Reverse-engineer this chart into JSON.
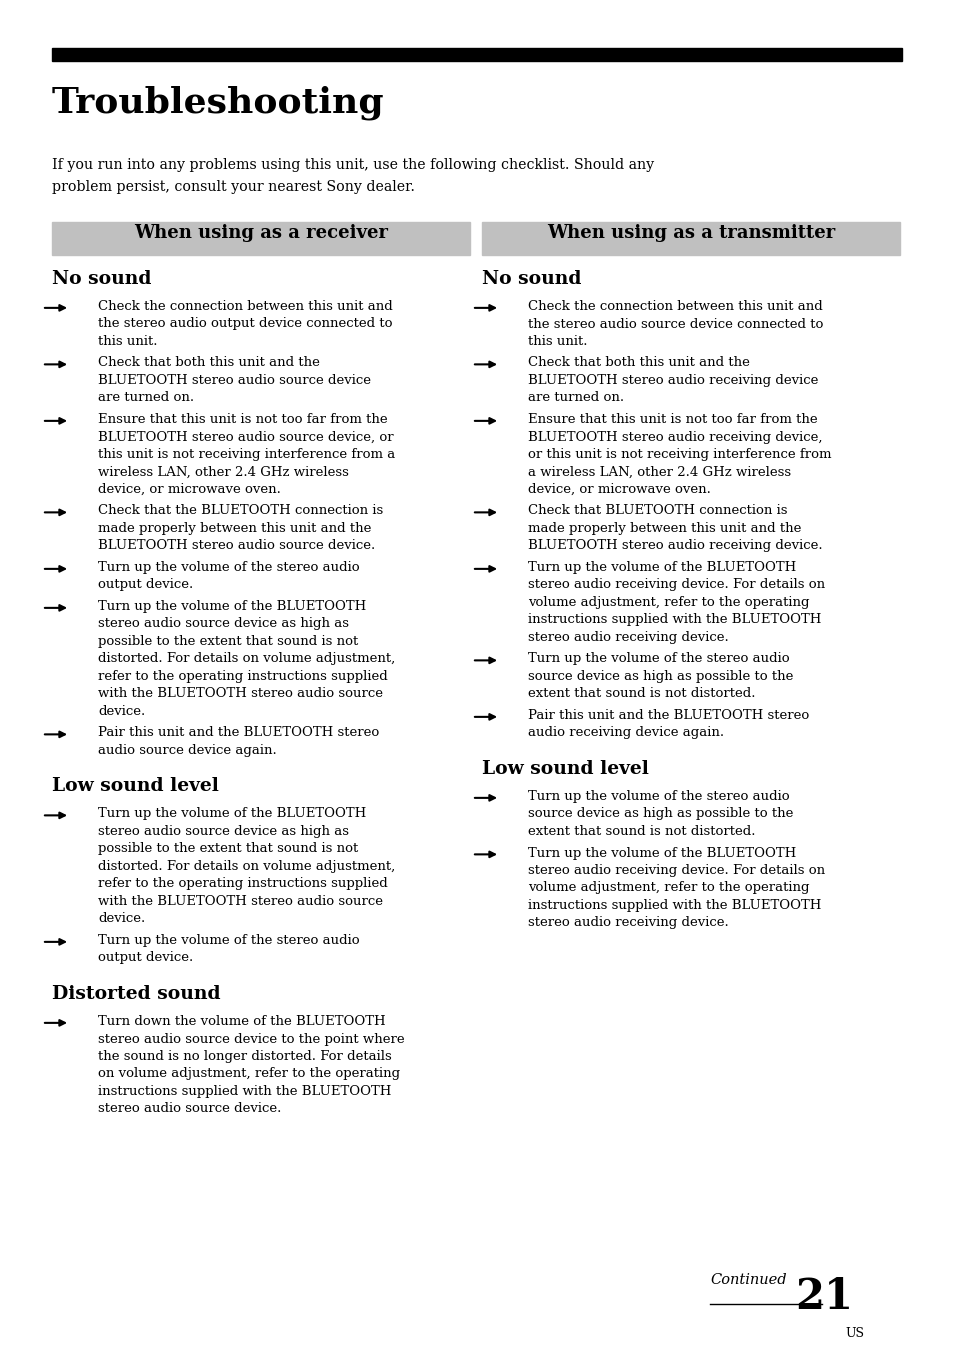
{
  "title": "Troubleshooting",
  "intro_lines": [
    "If you run into any problems using this unit, use the following checklist. Should any",
    "problem persist, consult your nearest Sony dealer."
  ],
  "col1_header": "When using as a receiver",
  "col2_header": "When using as a transmitter",
  "col1_sections": [
    {
      "heading": "No sound",
      "bullets": [
        "Check the connection between this unit and\nthe stereo audio output device connected to\nthis unit.",
        "Check that both this unit and the\nBLUETOOTH stereo audio source device\nare turned on.",
        "Ensure that this unit is not too far from the\nBLUETOOTH stereo audio source device, or\nthis unit is not receiving interference from a\nwireless LAN, other 2.4 GHz wireless\ndevice, or microwave oven.",
        "Check that the BLUETOOTH connection is\nmade properly between this unit and the\nBLUETOOTH stereo audio source device.",
        "Turn up the volume of the stereo audio\noutput device.",
        "Turn up the volume of the BLUETOOTH\nstereo audio source device as high as\npossible to the extent that sound is not\ndistorted. For details on volume adjustment,\nrefer to the operating instructions supplied\nwith the BLUETOOTH stereo audio source\ndevice.",
        "Pair this unit and the BLUETOOTH stereo\naudio source device again."
      ]
    },
    {
      "heading": "Low sound level",
      "bullets": [
        "Turn up the volume of the BLUETOOTH\nstereo audio source device as high as\npossible to the extent that sound is not\ndistorted. For details on volume adjustment,\nrefer to the operating instructions supplied\nwith the BLUETOOTH stereo audio source\ndevice.",
        "Turn up the volume of the stereo audio\noutput device."
      ]
    },
    {
      "heading": "Distorted sound",
      "bullets": [
        "Turn down the volume of the BLUETOOTH\nstereo audio source device to the point where\nthe sound is no longer distorted. For details\non volume adjustment, refer to the operating\ninstructions supplied with the BLUETOOTH\nstereo audio source device."
      ]
    }
  ],
  "col2_sections": [
    {
      "heading": "No sound",
      "bullets": [
        "Check the connection between this unit and\nthe stereo audio source device connected to\nthis unit.",
        "Check that both this unit and the\nBLUETOOTH stereo audio receiving device\nare turned on.",
        "Ensure that this unit is not too far from the\nBLUETOOTH stereo audio receiving device,\nor this unit is not receiving interference from\na wireless LAN, other 2.4 GHz wireless\ndevice, or microwave oven.",
        "Check that BLUETOOTH connection is\nmade properly between this unit and the\nBLUETOOTH stereo audio receiving device.",
        "Turn up the volume of the BLUETOOTH\nstereo audio receiving device. For details on\nvolume adjustment, refer to the operating\ninstructions supplied with the BLUETOOTH\nstereo audio receiving device.",
        "Turn up the volume of the stereo audio\nsource device as high as possible to the\nextent that sound is not distorted.",
        "Pair this unit and the BLUETOOTH stereo\naudio receiving device again."
      ]
    },
    {
      "heading": "Low sound level",
      "bullets": [
        "Turn up the volume of the stereo audio\nsource device as high as possible to the\nextent that sound is not distorted.",
        "Turn up the volume of the BLUETOOTH\nstereo audio receiving device. For details on\nvolume adjustment, refer to the operating\ninstructions supplied with the BLUETOOTH\nstereo audio receiving device."
      ]
    }
  ],
  "footer_continued": "Continued",
  "footer_page": "21",
  "footer_us": "US",
  "bg_color": "#ffffff",
  "header_bar_color": "#000000",
  "section_header_bg": "#c0c0c0",
  "body_text_color": "#000000"
}
